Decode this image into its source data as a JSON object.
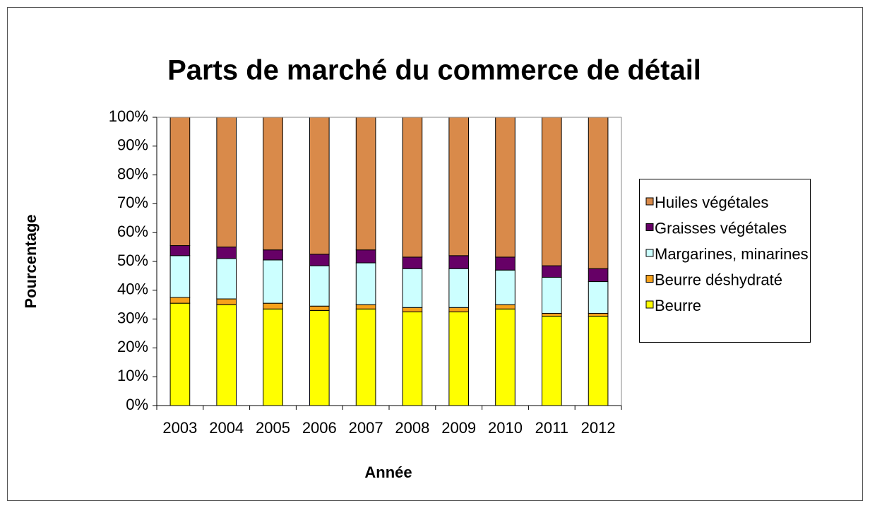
{
  "chart_data": {
    "type": "stacked_bar",
    "title": "Parts de marché du commerce de détail",
    "x_label": "Année",
    "y_label": "Pourcentage",
    "categories": [
      "2003",
      "2004",
      "2005",
      "2006",
      "2007",
      "2008",
      "2009",
      "2010",
      "2011",
      "2012"
    ],
    "series": [
      {
        "name": "Beurre",
        "color": "#ffff00",
        "values": [
          35.5,
          35,
          33.5,
          33,
          33.5,
          32.5,
          32.5,
          33.5,
          31,
          31
        ]
      },
      {
        "name": "Beurre déshydraté",
        "color": "#f7a21b",
        "values": [
          2,
          2,
          2,
          1.5,
          1.5,
          1.5,
          1.5,
          1.5,
          1,
          1
        ]
      },
      {
        "name": "Margarines, minarines",
        "color": "#ccffff",
        "values": [
          14.5,
          14,
          15,
          14,
          14.5,
          13.5,
          13.5,
          12,
          12.5,
          11
        ]
      },
      {
        "name": "Graisses végétales",
        "color": "#660066",
        "values": [
          3.5,
          4,
          3.5,
          4,
          4.5,
          4,
          4.5,
          4.5,
          4,
          4.5
        ]
      },
      {
        "name": "Huiles végétales",
        "color": "#d98a4a",
        "values": [
          44.5,
          45,
          46,
          47.5,
          46,
          48.5,
          48,
          48.5,
          51.5,
          52.5
        ]
      }
    ],
    "ylim": [
      0,
      100
    ],
    "yticks": [
      {
        "value": 0,
        "label": "0%"
      },
      {
        "value": 10,
        "label": "10%"
      },
      {
        "value": 20,
        "label": "20%"
      },
      {
        "value": 30,
        "label": "30%"
      },
      {
        "value": 40,
        "label": "40%"
      },
      {
        "value": 50,
        "label": "50%"
      },
      {
        "value": 60,
        "label": "60%"
      },
      {
        "value": 70,
        "label": "70%"
      },
      {
        "value": 80,
        "label": "80%"
      },
      {
        "value": 90,
        "label": "90%"
      },
      {
        "value": 100,
        "label": "100%"
      }
    ],
    "grid": false,
    "legend": "right"
  }
}
